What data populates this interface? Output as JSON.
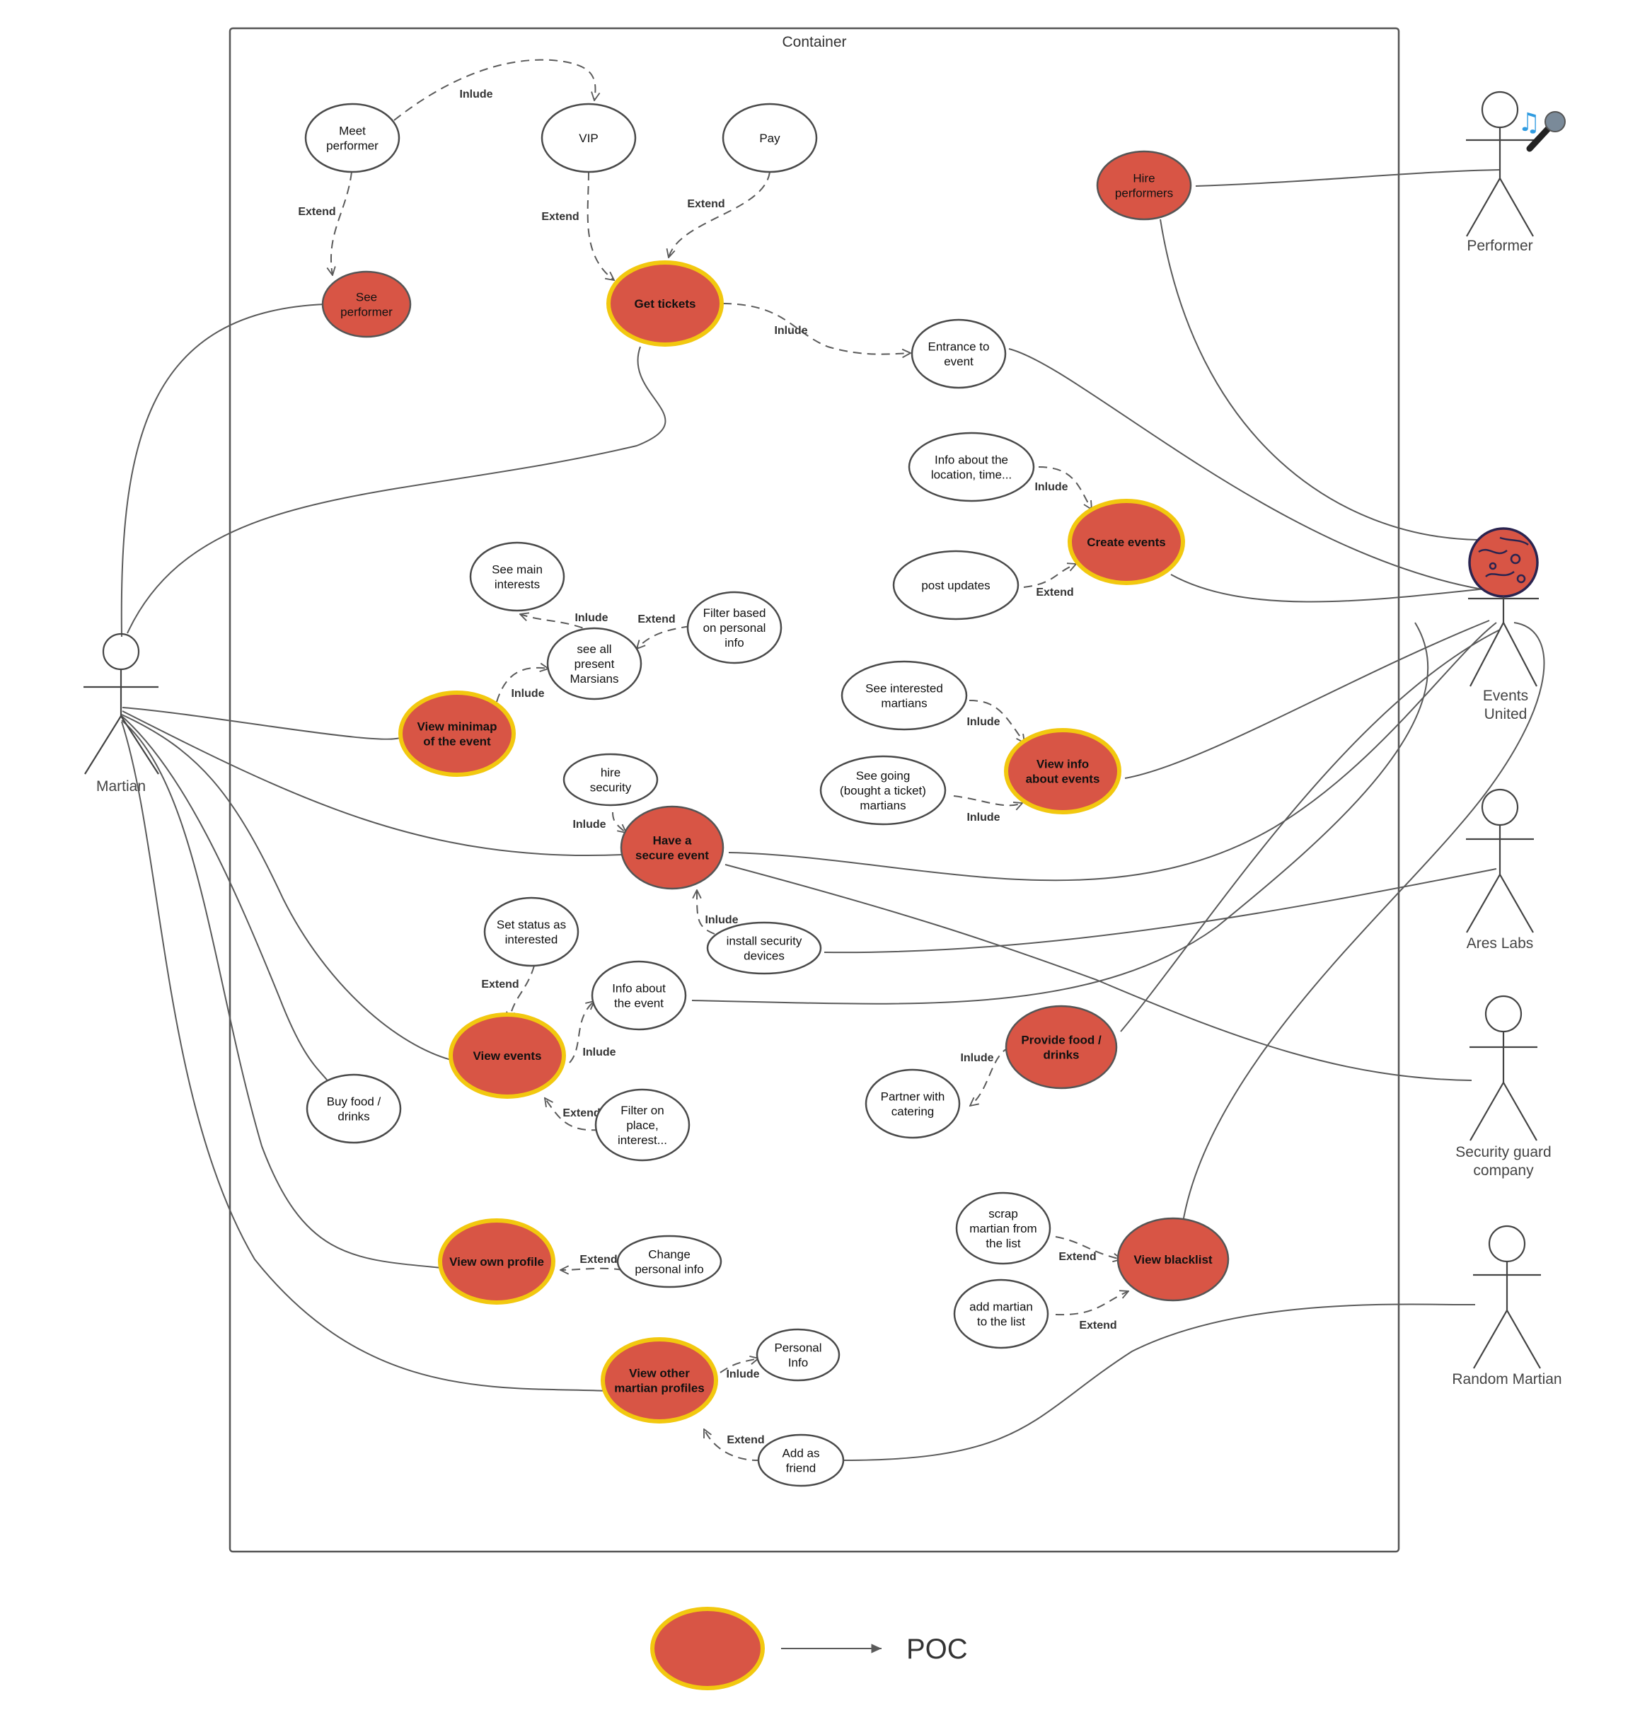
{
  "container": {
    "title": "Container"
  },
  "use_cases": {
    "meet_performer": "Meet\nperformer",
    "vip": "VIP",
    "pay": "Pay",
    "see_performer": "See\nperformer",
    "get_tickets": "Get tickets",
    "entrance": "Entrance to\nevent",
    "hire_performers": "Hire\nperformers",
    "info_location": "Info about the\nlocation, time...",
    "create_events": "Create events",
    "post_updates": "post updates",
    "see_main_interests": "See main\ninterests",
    "see_all_present": "see all\npresent\nMarsians",
    "filter_personal": "Filter based\non personal\ninfo",
    "view_minimap": "View minimap\nof the event",
    "see_interested": "See interested\nmartians",
    "view_info_events": "View info\nabout events",
    "see_going": "See going\n(bought a ticket)\nmartians",
    "hire_security": "hire\nsecurity",
    "have_secure": "Have a\nsecure event",
    "install_security": "install security\ndevices",
    "set_status": "Set status as\ninterested",
    "info_about_event": "Info about\nthe event",
    "view_events": "View events",
    "filter_place": "Filter on\nplace,\ninterest...",
    "buy_food": "Buy food /\ndrinks",
    "provide_food": "Provide food /\ndrinks",
    "partner_catering": "Partner with\ncatering",
    "scrap_martian": "scrap\nmartian from\nthe list",
    "add_martian": "add martian\nto the list",
    "view_blacklist": "View blacklist",
    "view_own_profile": "View own profile",
    "change_personal": "Change\npersonal info",
    "view_other_profiles": "View other\nmartian profiles",
    "personal_info": "Personal\nInfo",
    "add_friend": "Add as\nfriend"
  },
  "relation_labels": {
    "include": "Inlude",
    "extend": "Extend"
  },
  "actors": {
    "performer": "Performer",
    "events_united": "Events\nUnited",
    "ares_labs": "Ares Labs",
    "security_company": "Security guard\ncompany",
    "random_martian": "Random Martian",
    "martian": "Martian"
  },
  "icons": {
    "performer_badge": "music-note-microphone-icon",
    "events_united_badge": "mars-planet-icon"
  },
  "legend": {
    "label": "POC"
  },
  "colors": {
    "poc_fill": "#d85545",
    "poc_border": "#f2c80f",
    "line": "#5a5a5a"
  }
}
